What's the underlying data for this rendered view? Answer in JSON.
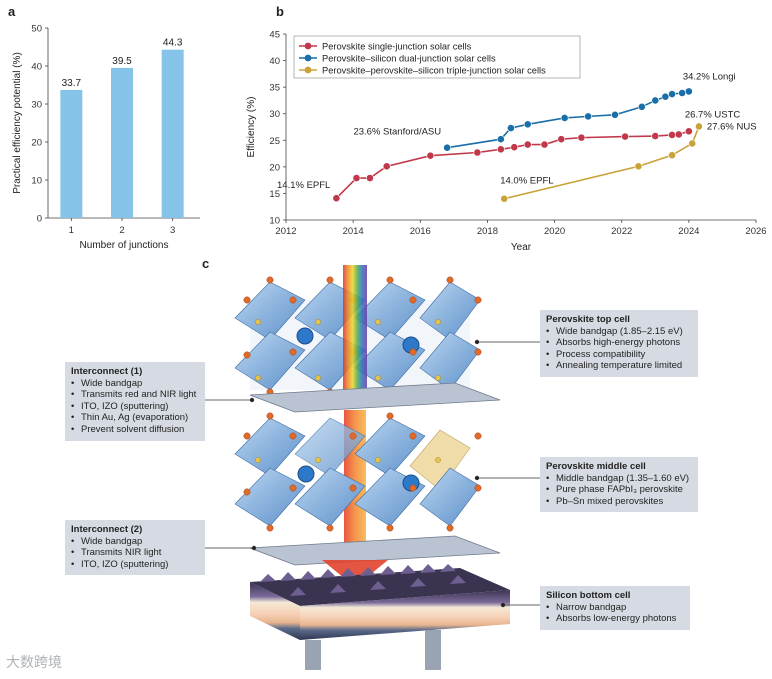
{
  "panels": {
    "a": "a",
    "b": "b",
    "c": "c"
  },
  "chart_data": [
    {
      "type": "bar",
      "panel": "a",
      "categories": [
        "1",
        "2",
        "3"
      ],
      "values": [
        33.7,
        39.5,
        44.3
      ],
      "value_labels": [
        "33.7",
        "39.5",
        "44.3"
      ],
      "xlabel": "Number of junctions",
      "ylabel": "Practical efficiency potential (%)",
      "ylim": [
        0,
        50
      ],
      "yticks": [
        "0",
        "10",
        "20",
        "30",
        "40",
        "50"
      ],
      "color": "#86c3e8"
    },
    {
      "type": "line",
      "panel": "b",
      "xlabel": "Year",
      "ylabel": "Efficiency (%)",
      "xlim": [
        2012,
        2026
      ],
      "ylim": [
        10,
        45
      ],
      "xticks": [
        "2012",
        "2014",
        "2016",
        "2018",
        "2020",
        "2022",
        "2024",
        "2026"
      ],
      "yticks": [
        "10",
        "15",
        "20",
        "25",
        "30",
        "35",
        "40",
        "45"
      ],
      "legend_position": "top-left",
      "series": [
        {
          "name": "Perovskite single-junction solar cells",
          "color": "#c0394a",
          "x": [
            2013.5,
            2014.1,
            2014.5,
            2015.0,
            2016.3,
            2017.7,
            2018.4,
            2018.8,
            2019.2,
            2019.7,
            2020.2,
            2020.8,
            2022.1,
            2023.0,
            2023.5,
            2023.7,
            2024.0
          ],
          "y": [
            14.1,
            17.9,
            17.9,
            20.1,
            22.1,
            22.7,
            23.3,
            23.7,
            24.2,
            24.2,
            25.2,
            25.5,
            25.7,
            25.8,
            26.0,
            26.1,
            26.7
          ]
        },
        {
          "name": "Perovskite–silicon dual-junction solar cells",
          "color": "#1a6fa8",
          "x": [
            2016.8,
            2018.4,
            2018.7,
            2019.2,
            2020.3,
            2021.0,
            2021.8,
            2022.6,
            2023.0,
            2023.3,
            2023.5,
            2023.8,
            2024.0
          ],
          "y": [
            23.6,
            25.2,
            27.3,
            28.0,
            29.2,
            29.5,
            29.8,
            31.3,
            32.5,
            33.2,
            33.7,
            33.9,
            34.2
          ]
        },
        {
          "name": "Perovskite–perovskite–silicon triple-junction solar cells",
          "color": "#c9a23a",
          "x": [
            2018.5,
            2022.5,
            2023.5,
            2024.1,
            2024.3
          ],
          "y": [
            14.0,
            20.1,
            22.2,
            24.4,
            27.6
          ]
        }
      ],
      "annotations": [
        {
          "text": "14.1% EPFL",
          "x": 2013.5,
          "y": 14.1
        },
        {
          "text": "23.6% Stanford/ASU",
          "x": 2016.8,
          "y": 23.6
        },
        {
          "text": "14.0% EPFL",
          "x": 2018.5,
          "y": 14.0
        },
        {
          "text": "34.2% Longi",
          "x": 2024.0,
          "y": 34.2
        },
        {
          "text": "26.7% USTC",
          "x": 2024.0,
          "y": 26.7
        },
        {
          "text": "27.6% NUS",
          "x": 2024.3,
          "y": 27.6
        }
      ]
    }
  ],
  "diagram": {
    "top_cell": {
      "title": "Perovskite top cell",
      "items": [
        "Wide bandgap (1.85–2.15 eV)",
        "Absorbs high-energy photons",
        "Process compatibility",
        "Annealing temperature limited"
      ]
    },
    "interconnect1": {
      "title": "Interconnect (1)",
      "items": [
        "Wide bandgap",
        "Transmits red and NIR light",
        "ITO, IZO (sputtering)",
        "Thin Au, Ag (evaporation)",
        "Prevent solvent diffusion"
      ]
    },
    "middle_cell": {
      "title": "Perovskite middle cell",
      "items": [
        "Middle bandgap (1.35–1.60 eV)",
        "Pure phase FAPbI₃ perovskite",
        "Pb–Sn mixed perovskites"
      ]
    },
    "interconnect2": {
      "title": "Interconnect (2)",
      "items": [
        "Wide bandgap",
        "Transmits NIR light",
        "ITO, IZO (sputtering)"
      ]
    },
    "bottom_cell": {
      "title": "Silicon bottom cell",
      "items": [
        "Narrow bandgap",
        "Absorbs low-energy photons"
      ]
    }
  },
  "watermark": "大数跨境"
}
